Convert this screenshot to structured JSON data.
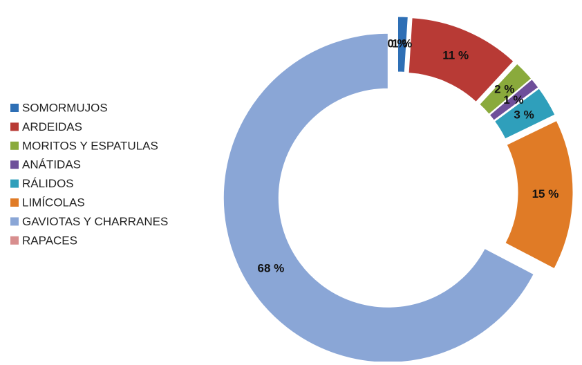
{
  "chart_data": {
    "type": "donut",
    "categories": [
      "SOMORMUJOS",
      "ARDEIDAS",
      "MORITOS Y ESPATULAS",
      "ANÁTIDAS",
      "RÁLIDOS",
      "LIMÍCOLAS",
      "GAVIOTAS Y CHARRANES",
      "RAPACES"
    ],
    "values": [
      1,
      11,
      2,
      1,
      3,
      15,
      68,
      0
    ],
    "value_labels": [
      "1 %",
      "11 %",
      "2 %",
      "1 %",
      "3 %",
      "15 %",
      "68 %",
      "0 %"
    ],
    "colors": [
      "#2e6fb5",
      "#b83a35",
      "#8aaa3c",
      "#6e4f9a",
      "#2f9fbb",
      "#e07b26",
      "#8aa6d6",
      "#d88e8e"
    ],
    "legend": "left"
  }
}
